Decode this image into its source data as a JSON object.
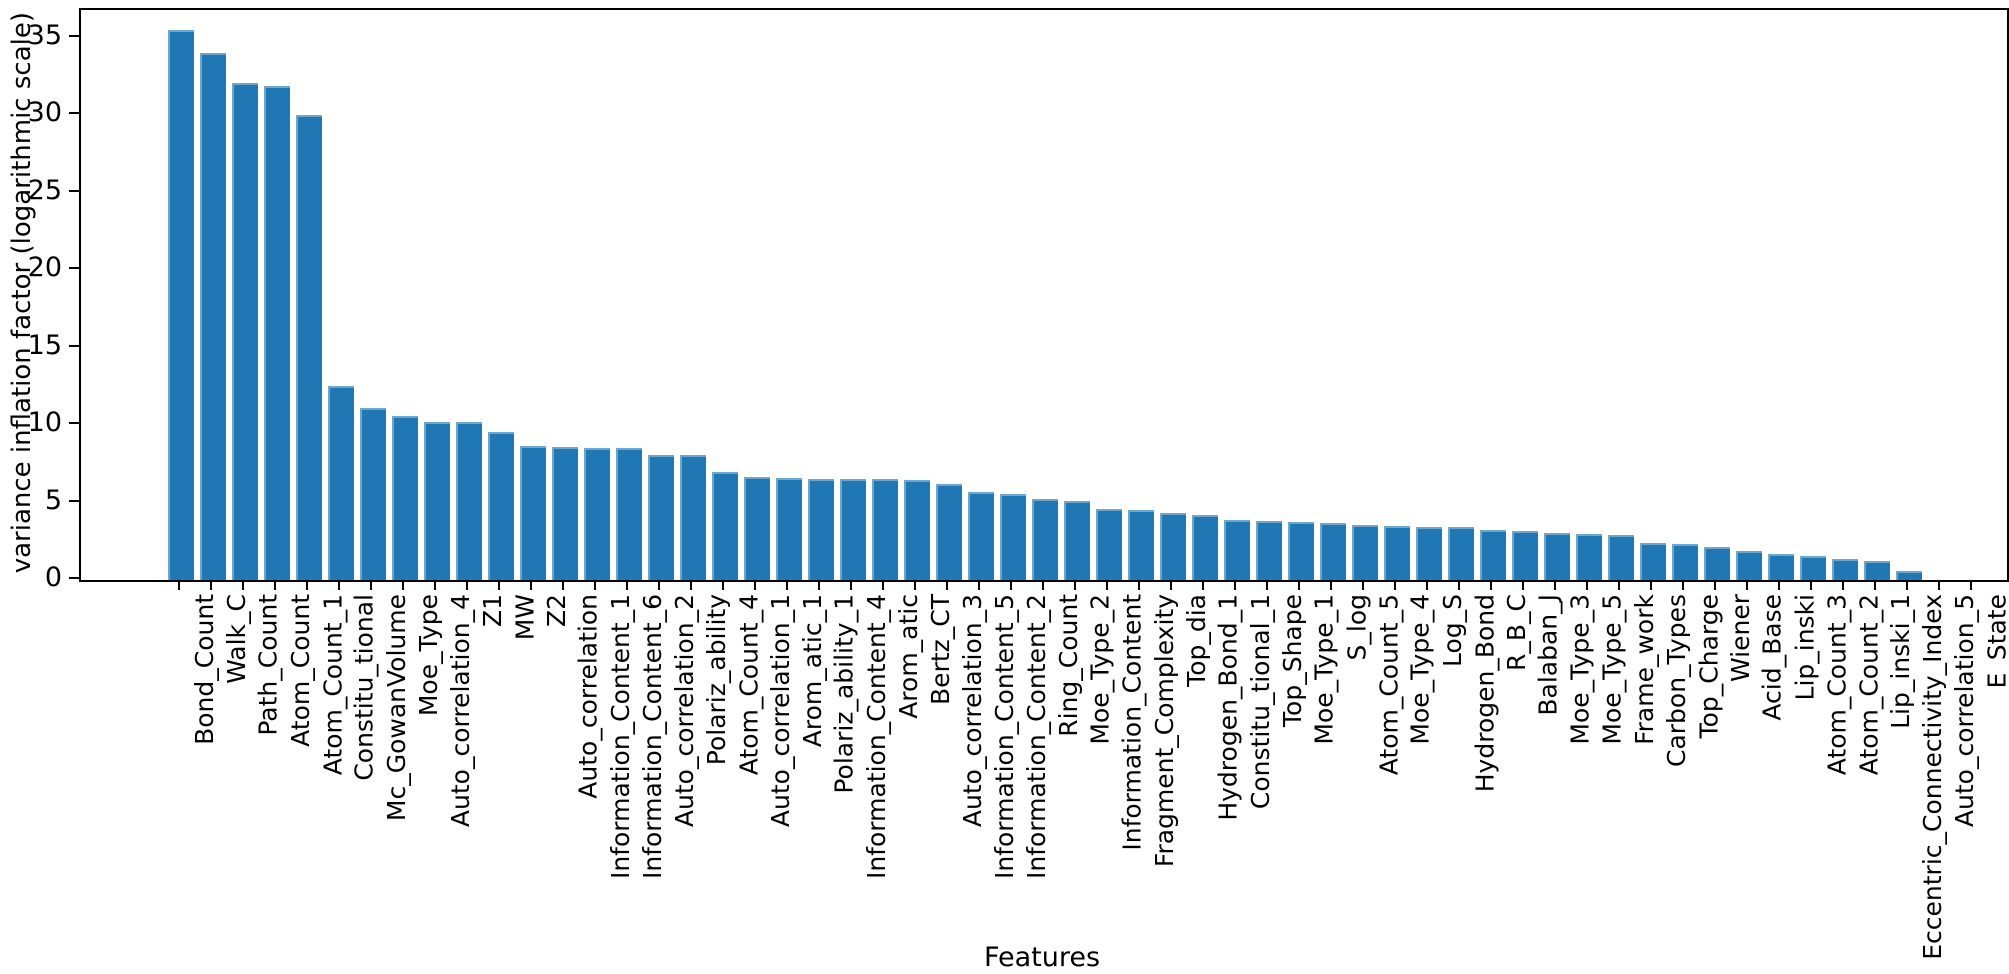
{
  "figure": {
    "background": "#ffffff",
    "text_color": "#000000"
  },
  "chart_data": {
    "type": "bar",
    "title": "",
    "xlabel": "Features",
    "ylabel": "variance inflation factor (logarithmic scale)",
    "bar_color": "#1f77b4",
    "bar_edge_highlight": "rgba(255,255,255,0.35)",
    "grid": false,
    "legend_position": "none",
    "ylim": [
      0,
      36.8
    ],
    "yticks": [
      0,
      5,
      10,
      15,
      20,
      25,
      30,
      35
    ],
    "categories": [
      "Bond_Count",
      "Walk_C",
      "Path_Count",
      "Atom_Count",
      "Atom_Count_1",
      "Constitu_tional",
      "Mc_GowanVolume",
      "Moe_Type",
      "Auto_correlation_4",
      "Z1",
      "MW",
      "Z2",
      "Auto_correlation",
      "Information_Content_1",
      "Information_Content_6",
      "Auto_correlation_2",
      "Polariz_ability",
      "Atom_Count_4",
      "Auto_correlation_1",
      "Arom_atic_1",
      "Polariz_ability_1",
      "Information_Content_4",
      "Arom_atic",
      "Bertz_CT",
      "Auto_correlation_3",
      "Information_Content_5",
      "Information_Content_2",
      "Ring_Count",
      "Moe_Type_2",
      "Information_Content",
      "Fragment_Complexity",
      "Top_dia",
      "Hydrogen_Bond_1",
      "Constitu_tional_1",
      "Top_Shape",
      "Moe_Type_1",
      "S_log",
      "Atom_Count_5",
      "Moe_Type_4",
      "Log_S",
      "Hydrogen_Bond",
      "R_B_C",
      "Balaban_J",
      "Moe_Type_3",
      "Moe_Type_5",
      "Frame_work",
      "Carbon_Types",
      "Top_Charge",
      "Wiener",
      "Acid_Base",
      "Lip_inski",
      "Atom_Count_3",
      "Atom_Count_2",
      "Lip_inski_1",
      "Eccentric_Connectivity_Index",
      "Auto_correlation_5",
      "E_State"
    ],
    "values": [
      35.5,
      34.0,
      32.1,
      31.9,
      30.0,
      12.5,
      11.1,
      10.6,
      10.2,
      10.2,
      9.55,
      8.65,
      8.6,
      8.5,
      8.5,
      8.1,
      8.05,
      7.0,
      6.65,
      6.6,
      6.55,
      6.5,
      6.5,
      6.45,
      6.2,
      5.7,
      5.55,
      5.2,
      5.1,
      4.6,
      4.5,
      4.35,
      4.2,
      3.9,
      3.8,
      3.75,
      3.7,
      3.55,
      3.5,
      3.45,
      3.4,
      3.2,
      3.15,
      3.05,
      3.0,
      2.9,
      2.4,
      2.35,
      2.1,
      1.85,
      1.65,
      1.55,
      1.35,
      1.2,
      0.55,
      0.0,
      0.0
    ]
  }
}
